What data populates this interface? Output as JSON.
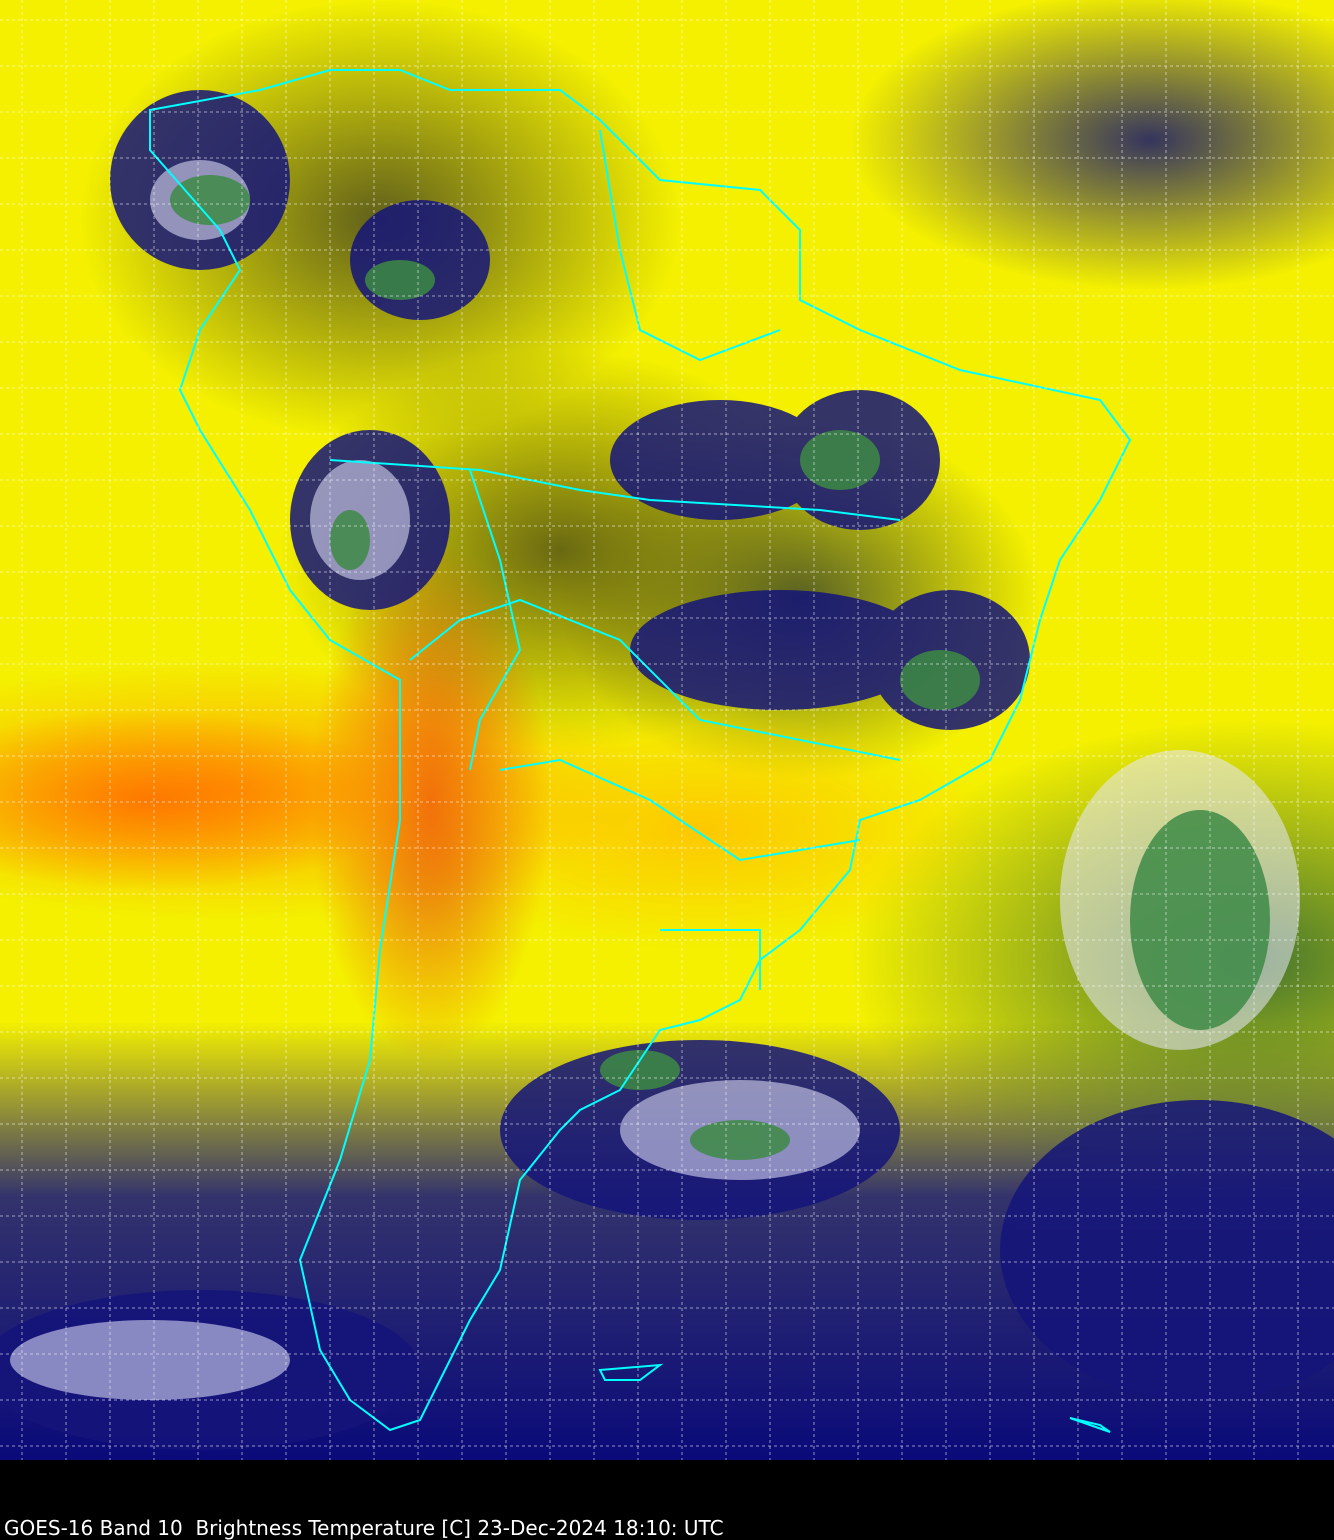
{
  "caption": "GOES-16 Band 10  Brightness Temperature [C] 23-Dec-2024 18:10: UTC",
  "colors": {
    "boundaries": "#00ffff",
    "grid": "#ffffff",
    "warm": "#ff6a00",
    "dry": "#f4f000",
    "cold": "#0a0a7a",
    "very_cold": "#3c7a3c"
  }
}
